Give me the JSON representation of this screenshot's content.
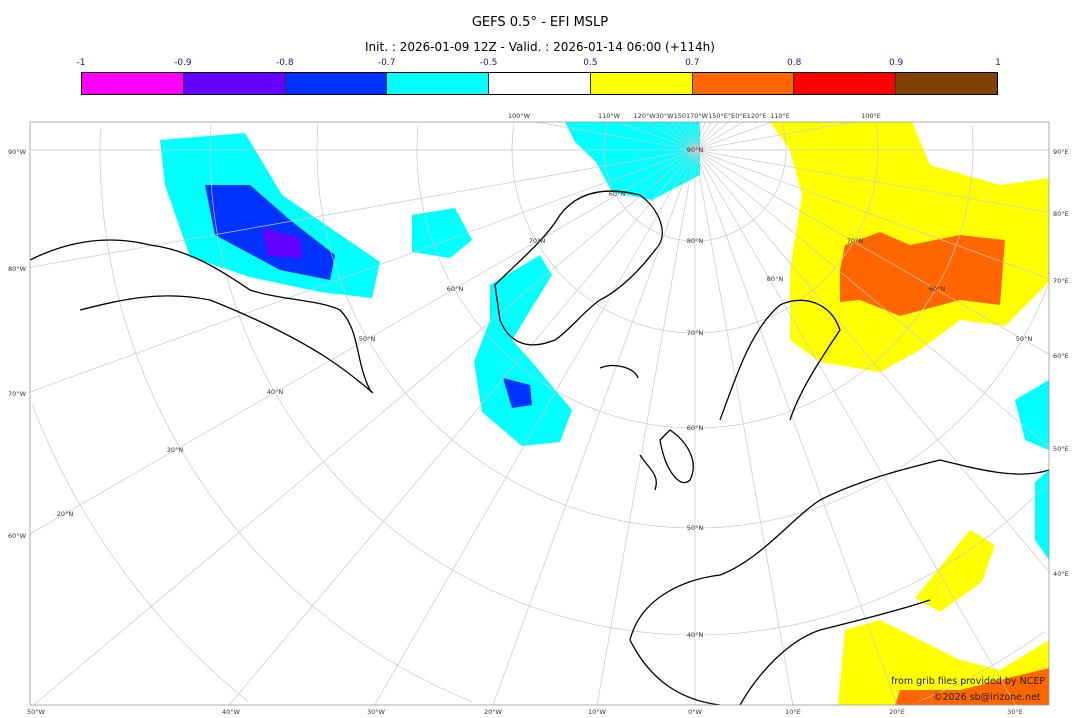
{
  "header": {
    "title": "GEFS 0.5° - EFI MSLP",
    "subtitle": "Init. : 2026-01-09 12Z - Valid. : 2026-01-14 06:00 (+114h)"
  },
  "colorbar": {
    "labels": [
      "-1",
      "-0.9",
      "-0.8",
      "-0.7",
      "-0.5",
      "0.5",
      "0.7",
      "0.8",
      "0.9",
      "1"
    ],
    "colors": [
      "#ff00ff",
      "#6600ff",
      "#0033ff",
      "#00ffff",
      "#ffffff",
      "#ffff00",
      "#ff6600",
      "#ff0000",
      "#804000"
    ]
  },
  "map": {
    "left_labels": [
      "90°W",
      "80°W",
      "70°W",
      "60°W"
    ],
    "right_labels": [
      "90°E",
      "80°E",
      "70°E",
      "60°E",
      "50°E",
      "40°E"
    ],
    "bottom_labels": [
      "50°W",
      "40°W",
      "30°W",
      "20°W",
      "10°W",
      "0°W",
      "10°E",
      "20°E",
      "30°E"
    ],
    "top_labels": [
      "100°W",
      "110°W",
      "120°W30°W150170°W150°E°E0°E120°E",
      "110°E",
      "100°E"
    ],
    "lat_labels": [
      "90°N",
      "80°N",
      "70°N",
      "60°N",
      "50°N",
      "40°N",
      "60°N",
      "70°N",
      "60°N",
      "50°N",
      "40°N",
      "30°N",
      "20°N",
      "80°N",
      "70°N",
      "60°N",
      "50°N"
    ]
  },
  "credits": {
    "source": "from grib files provided by NCEP",
    "copyright": "©2026 sb@irizone.net"
  }
}
